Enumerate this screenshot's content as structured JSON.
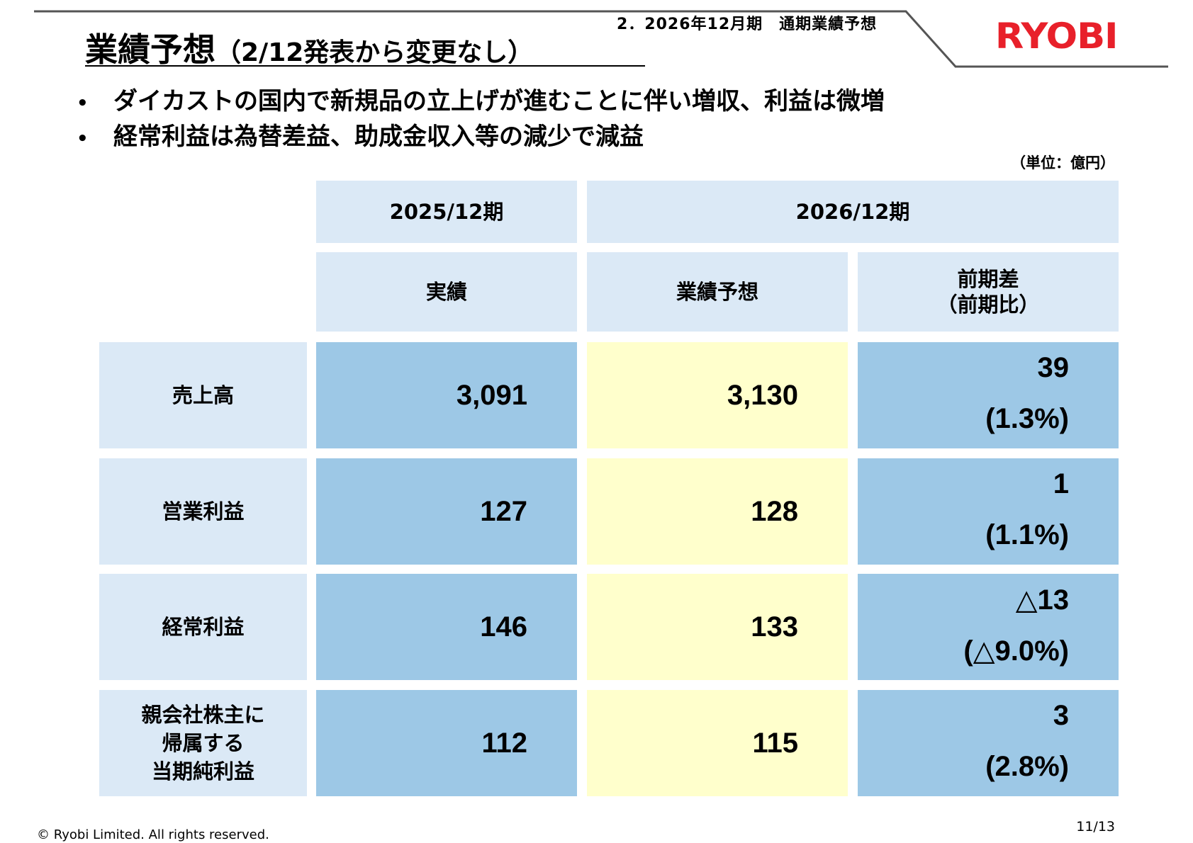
{
  "header": {
    "section_label": "2．2026年12月期　通期業績予想",
    "title_main": "業績予想",
    "title_sub": "（2/12発表から変更なし）",
    "logo_text": "RYOBI",
    "logo_color": "#e8202a"
  },
  "bullets": [
    "ダイカストの国内で新規品の立上げが進むことに伴い増収、利益は微増",
    "経常利益は為替差益、助成金収入等の減少で減益"
  ],
  "bullet_marker": "•",
  "unit": "（単位：億円）",
  "table": {
    "period_prev": "2025/12期",
    "period_curr": "2026/12期",
    "col_actual": "実績",
    "col_forecast": "業績予想",
    "col_diff_line1": "前期差",
    "col_diff_line2": "（前期比）",
    "rows": [
      {
        "label_lines": [
          "売上高"
        ],
        "actual": "3,091",
        "forecast": "3,130",
        "diff": "39",
        "ratio": "(1.3%)"
      },
      {
        "label_lines": [
          "営業利益"
        ],
        "actual": "127",
        "forecast": "128",
        "diff": "1",
        "ratio": "(1.1%)"
      },
      {
        "label_lines": [
          "経常利益"
        ],
        "actual": "146",
        "forecast": "133",
        "diff": "△13",
        "ratio": "(△9.0%)"
      },
      {
        "label_lines": [
          "親会社株主に",
          "帰属する",
          "当期純利益"
        ],
        "actual": "112",
        "forecast": "115",
        "diff": "3",
        "ratio": "(2.8%)"
      }
    ],
    "colors": {
      "header_bg": "#dbe9f6",
      "actual_bg": "#9dc8e6",
      "forecast_bg": "#ffffcc"
    }
  },
  "footer": {
    "copyright": "© Ryobi Limited. All rights reserved.",
    "page": "11/13"
  }
}
